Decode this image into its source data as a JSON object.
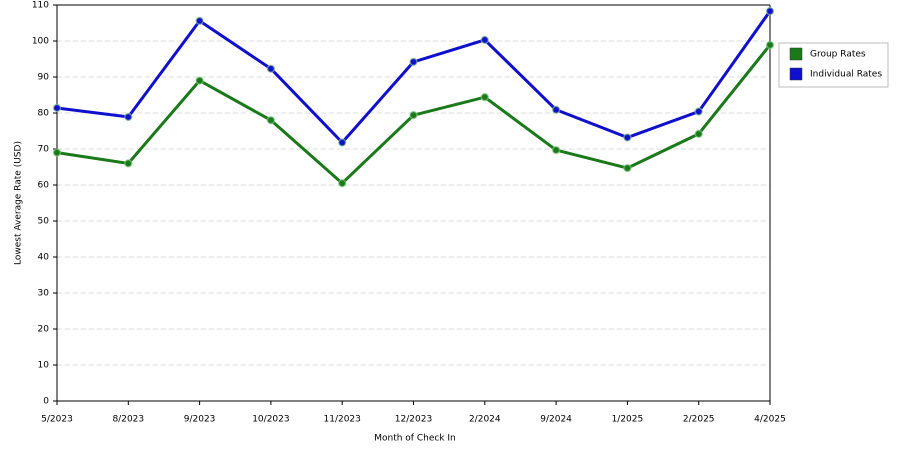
{
  "chart_data": {
    "type": "line",
    "x_label": "Month of Check In",
    "y_label": "Lowest Average Rate (USD)",
    "categories": [
      "5/2023",
      "8/2023",
      "9/2023",
      "10/2023",
      "11/2023",
      "12/2023",
      "2/2024",
      "9/2024",
      "1/2025",
      "2/2025",
      "4/2025"
    ],
    "series": [
      {
        "name": "Group Rates",
        "color": "#1a7a1a",
        "values": [
          69,
          66,
          89,
          78,
          60.5,
          79.4,
          84.4,
          69.7,
          64.7,
          74.2,
          98.9
        ]
      },
      {
        "name": "Individual Rates",
        "color": "#1010cc",
        "values": [
          81.4,
          78.9,
          105.6,
          92.3,
          71.8,
          94.2,
          100.3,
          80.9,
          73.2,
          80.4,
          108.3
        ]
      }
    ],
    "ylim": [
      0,
      110
    ],
    "yticks": [
      0,
      10,
      20,
      30,
      40,
      50,
      60,
      70,
      80,
      90,
      100,
      110
    ],
    "grid": true,
    "legend": "right"
  }
}
